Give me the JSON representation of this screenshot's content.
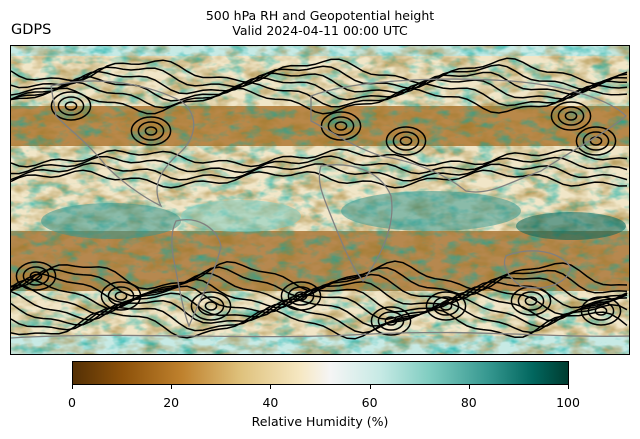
{
  "title_line1": "500 hPa RH and Geopotential height",
  "title_line2": "Valid 2024-04-11 00:00 UTC",
  "model": "GDPS",
  "colorbar": {
    "label": "Relative Humidity (%)",
    "min": 0,
    "max": 100,
    "ticks": [
      "0",
      "20",
      "40",
      "60",
      "80",
      "100"
    ],
    "stops": [
      {
        "value": 0,
        "color": "#543005"
      },
      {
        "value": 10,
        "color": "#8c510a"
      },
      {
        "value": 22,
        "color": "#bf812d"
      },
      {
        "value": 34,
        "color": "#dfc27d"
      },
      {
        "value": 46,
        "color": "#f6e8c3"
      },
      {
        "value": 52,
        "color": "#f5f5f5"
      },
      {
        "value": 62,
        "color": "#c7eae5"
      },
      {
        "value": 72,
        "color": "#80cdc1"
      },
      {
        "value": 84,
        "color": "#35978f"
      },
      {
        "value": 93,
        "color": "#01665e"
      },
      {
        "value": 100,
        "color": "#003c30"
      }
    ]
  },
  "map_colors": {
    "contour": "#000000",
    "coastline": "#808080"
  }
}
